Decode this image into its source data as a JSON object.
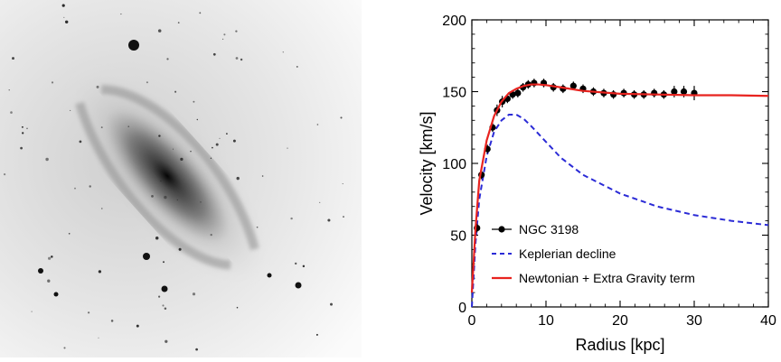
{
  "figure": {
    "image_subject": "spiral-galaxy-photograph-ngc-3198"
  },
  "chart_data": {
    "type": "line",
    "xlabel": "Radius [kpc]",
    "ylabel": "Velocity [km/s]",
    "xlim": [
      0,
      40
    ],
    "ylim": [
      0,
      200
    ],
    "xticks": [
      0,
      10,
      20,
      30,
      40
    ],
    "yticks": [
      0,
      50,
      100,
      150,
      200
    ],
    "grid": false,
    "legend_position": "bottom-left",
    "series": [
      {
        "name": "NGC 3198",
        "kind": "points-with-errorbars",
        "color": "#000000",
        "x": [
          0.7,
          1.3,
          2.1,
          2.8,
          3.4,
          4.1,
          4.8,
          5.5,
          6.2,
          6.9,
          7.6,
          8.4,
          9.7,
          11.0,
          12.3,
          13.7,
          15.0,
          16.4,
          17.8,
          19.1,
          20.5,
          21.9,
          23.2,
          24.6,
          25.9,
          27.3,
          28.6,
          30.0
        ],
        "y": [
          55,
          92,
          110,
          125,
          137,
          143,
          145,
          148,
          149,
          153,
          155,
          156,
          156,
          153,
          152,
          154,
          152,
          150,
          149,
          148,
          149,
          148,
          148,
          149,
          148,
          150,
          150,
          149
        ],
        "err": [
          3,
          3,
          3,
          3,
          4,
          4,
          3,
          3,
          3,
          3,
          3,
          3,
          3,
          3,
          3,
          3,
          3,
          3,
          3,
          3,
          3,
          3,
          3,
          3,
          3,
          4,
          4,
          5
        ]
      },
      {
        "name": "Keplerian decline",
        "kind": "dashed-line",
        "color": "#2b2bd6",
        "x": [
          0,
          0.5,
          1,
          2,
          3,
          4,
          5,
          6,
          7,
          8,
          10,
          12,
          15,
          20,
          25,
          30,
          35,
          40
        ],
        "y": [
          0,
          45,
          75,
          105,
          122,
          130,
          134,
          134,
          131,
          126,
          115,
          104,
          92,
          79,
          70,
          64,
          60,
          57
        ]
      },
      {
        "name": "Newtonian + Extra Gravity term",
        "kind": "solid-line",
        "color": "#e8231f",
        "x": [
          0,
          0.5,
          1,
          2,
          3,
          4,
          5,
          6,
          7,
          8,
          9,
          10,
          12,
          15,
          20,
          25,
          30,
          35,
          40
        ],
        "y": [
          10,
          55,
          88,
          116,
          133,
          143,
          149,
          152,
          154,
          155,
          155,
          154.5,
          153,
          150.5,
          148.5,
          148,
          147.5,
          147.5,
          147
        ]
      }
    ]
  }
}
